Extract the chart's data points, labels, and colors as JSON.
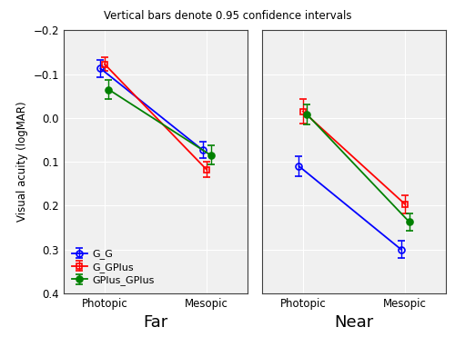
{
  "title": "Vertical bars denote 0.95 confidence intervals",
  "ylabel": "Visual acuity (logMAR)",
  "groups": [
    "G_G",
    "G_GPlus",
    "GPlus_GPlus"
  ],
  "colors": [
    "#0000ff",
    "#ff0000",
    "#008000"
  ],
  "xlabels": [
    "Photopic",
    "Mesopic"
  ],
  "panel_labels": [
    "Far",
    "Near"
  ],
  "far": {
    "G_G": {
      "means": [
        -0.113,
        0.073
      ],
      "ci": [
        0.02,
        0.018
      ]
    },
    "G_GPlus": {
      "means": [
        -0.123,
        0.118
      ],
      "ci": [
        0.016,
        0.018
      ]
    },
    "GPlus_GPlus": {
      "means": [
        -0.065,
        0.085
      ],
      "ci": [
        0.022,
        0.022
      ]
    }
  },
  "near": {
    "G_G": {
      "means": [
        0.11,
        0.3
      ],
      "ci": [
        0.022,
        0.02
      ]
    },
    "G_GPlus": {
      "means": [
        -0.015,
        0.197
      ],
      "ci": [
        0.028,
        0.02
      ]
    },
    "GPlus_GPlus": {
      "means": [
        -0.008,
        0.237
      ],
      "ci": [
        0.022,
        0.02
      ]
    }
  },
  "ylim": [
    -0.2,
    0.4
  ],
  "yticks": [
    -0.2,
    -0.1,
    0.0,
    0.1,
    0.2,
    0.3,
    0.4
  ],
  "x_positions": [
    0,
    1
  ],
  "offsets": [
    -0.04,
    0.0,
    0.04
  ]
}
